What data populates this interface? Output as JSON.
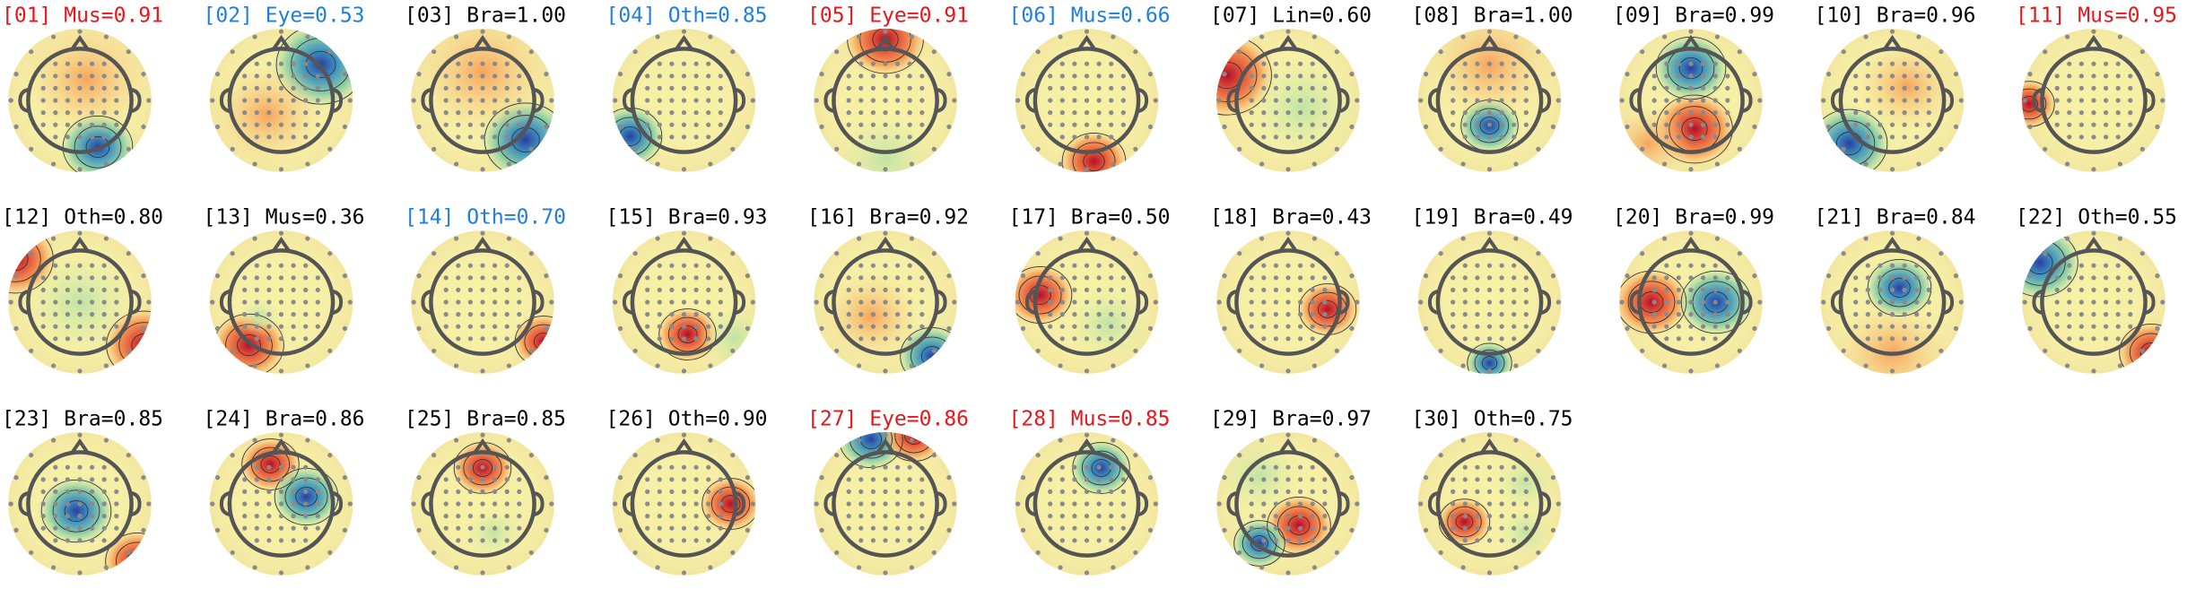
{
  "panels": [
    {
      "label": "[01] Mus=0.91",
      "color": "#e8161b"
    },
    {
      "label": "[02] Eye=0.53",
      "color": "#1e7fe0"
    },
    {
      "label": "[03] Bra=1.00",
      "color": "#000000"
    },
    {
      "label": "[04] Oth=0.85",
      "color": "#1e7fe0"
    },
    {
      "label": "[05] Eye=0.91",
      "color": "#e8161b"
    },
    {
      "label": "[06] Mus=0.66",
      "color": "#1e7fe0"
    },
    {
      "label": "[07] Lin=0.60",
      "color": "#000000"
    },
    {
      "label": "[08] Bra=1.00",
      "color": "#000000"
    },
    {
      "label": "[09] Bra=0.99",
      "color": "#000000"
    },
    {
      "label": "[10] Bra=0.96",
      "color": "#000000"
    },
    {
      "label": "[11] Mus=0.95",
      "color": "#e8161b"
    },
    {
      "label": "[12] Oth=0.80",
      "color": "#000000"
    },
    {
      "label": "[13] Mus=0.36",
      "color": "#000000"
    },
    {
      "label": "[14] Oth=0.70",
      "color": "#1e7fe0"
    },
    {
      "label": "[15] Bra=0.93",
      "color": "#000000"
    },
    {
      "label": "[16] Bra=0.92",
      "color": "#000000"
    },
    {
      "label": "[17] Bra=0.50",
      "color": "#000000"
    },
    {
      "label": "[18] Bra=0.43",
      "color": "#000000"
    },
    {
      "label": "[19] Bra=0.49",
      "color": "#000000"
    },
    {
      "label": "[20] Bra=0.99",
      "color": "#000000"
    },
    {
      "label": "[21] Bra=0.84",
      "color": "#000000"
    },
    {
      "label": "[22] Oth=0.55",
      "color": "#000000"
    },
    {
      "label": "[23] Bra=0.85",
      "color": "#000000"
    },
    {
      "label": "[24] Bra=0.86",
      "color": "#000000"
    },
    {
      "label": "[25] Bra=0.85",
      "color": "#000000"
    },
    {
      "label": "[26] Oth=0.90",
      "color": "#000000"
    },
    {
      "label": "[27] Eye=0.86",
      "color": "#e8161b"
    },
    {
      "label": "[28] Mus=0.85",
      "color": "#e8161b"
    },
    {
      "label": "[29] Bra=0.97",
      "color": "#000000"
    },
    {
      "label": "[30] Oth=0.75",
      "color": "#000000"
    }
  ]
}
